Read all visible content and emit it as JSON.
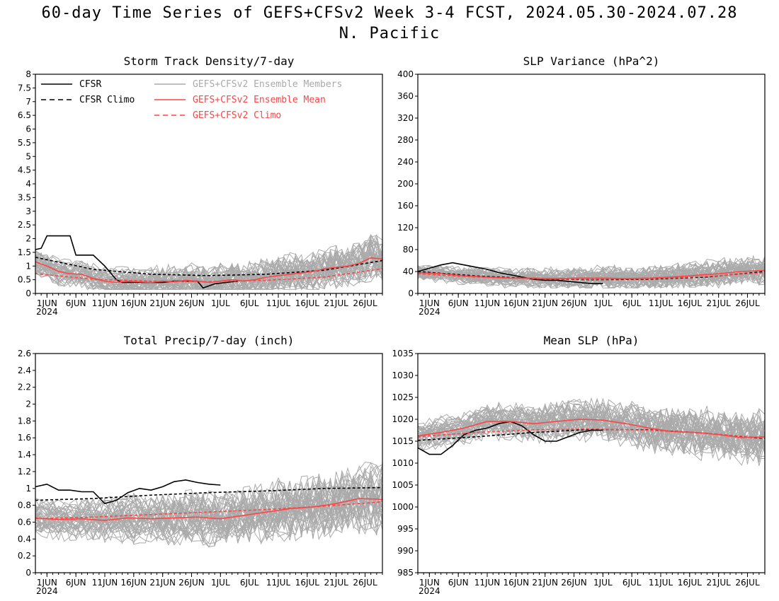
{
  "figure": {
    "title": "60-day Time Series of GEFS+CFSv2 Week 3-4 FCST, 2024.05.30-2024.07.28",
    "subtitle": "N. Pacific"
  },
  "colors": {
    "cfsr": "#000000",
    "members": "#aaaaaa",
    "ens_mean": "#ff4444"
  },
  "legend": {
    "items": [
      {
        "label": "CFSR",
        "style": "solid",
        "color": "#000000"
      },
      {
        "label": "CFSR Climo",
        "style": "dashed",
        "color": "#000000"
      },
      {
        "label": "GEFS+CFSv2 Ensemble Members",
        "style": "solid",
        "color": "#aaaaaa"
      },
      {
        "label": "GEFS+CFSv2 Ensemble Mean",
        "style": "solid",
        "color": "#ff4444"
      },
      {
        "label": "GEFS+CFSv2 Climo",
        "style": "dashed",
        "color": "#ff4444"
      }
    ]
  },
  "x_axis": {
    "labels": [
      "1JUN",
      "6JUN",
      "11JUN",
      "16JUN",
      "21JUN",
      "26JUN",
      "1JUL",
      "6JUL",
      "11JUL",
      "16JUL",
      "21JUL",
      "26JUL"
    ],
    "label_days": [
      2,
      7,
      12,
      17,
      22,
      27,
      32,
      37,
      42,
      47,
      52,
      57
    ],
    "year_label": "2024",
    "range_days": [
      0,
      60
    ]
  },
  "chart_data": [
    {
      "type": "line",
      "title": "Storm Track Density/7-day",
      "ylim": [
        0,
        8
      ],
      "yticks": [
        "0",
        "0.5",
        "1",
        "1.5",
        "2",
        "2.5",
        "3",
        "3.5",
        "4",
        "4.5",
        "5",
        "5.5",
        "6",
        "6.5",
        "7",
        "7.5",
        "8"
      ],
      "series": [
        {
          "name": "CFSR",
          "x": [
            0,
            1,
            2,
            3,
            6,
            7,
            8,
            10,
            12,
            14,
            15,
            16,
            18,
            20,
            22,
            24,
            26,
            28,
            29,
            31,
            33,
            35
          ],
          "values": [
            1.6,
            1.65,
            2.1,
            2.1,
            2.1,
            1.4,
            1.4,
            1.4,
            1.0,
            0.5,
            0.4,
            0.4,
            0.4,
            0.4,
            0.4,
            0.45,
            0.45,
            0.45,
            0.2,
            0.35,
            0.4,
            0.45
          ]
        },
        {
          "name": "CFSR Climo",
          "x": [
            0,
            10,
            20,
            30,
            40,
            50,
            60
          ],
          "values": [
            1.32,
            0.88,
            0.7,
            0.65,
            0.7,
            0.85,
            1.2
          ]
        },
        {
          "name": "GEFS+CFSv2 Ensemble Mean",
          "x": [
            0,
            2,
            4,
            6,
            8,
            10,
            12,
            14,
            16,
            18,
            20,
            22,
            24,
            26,
            28,
            30,
            32,
            34,
            36,
            38,
            40,
            42,
            44,
            46,
            48,
            50,
            52,
            54,
            56,
            58,
            60
          ],
          "values": [
            1.15,
            1.0,
            0.8,
            0.72,
            0.7,
            0.55,
            0.45,
            0.4,
            0.45,
            0.42,
            0.4,
            0.45,
            0.42,
            0.48,
            0.45,
            0.4,
            0.45,
            0.5,
            0.45,
            0.5,
            0.6,
            0.65,
            0.7,
            0.75,
            0.8,
            0.9,
            0.95,
            1.0,
            1.1,
            1.3,
            1.25
          ]
        },
        {
          "name": "GEFS+CFSv2 Climo",
          "x": [
            0,
            10,
            20,
            30,
            40,
            50,
            60
          ],
          "values": [
            0.72,
            0.52,
            0.45,
            0.43,
            0.48,
            0.6,
            0.9
          ]
        }
      ],
      "members": {
        "count": 40,
        "spread_low": 0.15,
        "spread_high": 2.6
      }
    },
    {
      "type": "line",
      "title": "SLP Variance (hPa^2)",
      "ylim": [
        0,
        400
      ],
      "yticks": [
        "0",
        "40",
        "80",
        "120",
        "160",
        "200",
        "240",
        "280",
        "320",
        "360",
        "400"
      ],
      "series": [
        {
          "name": "CFSR",
          "x": [
            0,
            2,
            4,
            6,
            8,
            10,
            12,
            14,
            16,
            18,
            20,
            22,
            24,
            26,
            28,
            30,
            32
          ],
          "values": [
            40,
            46,
            52,
            56,
            52,
            48,
            44,
            38,
            34,
            30,
            26,
            24,
            24,
            22,
            20,
            18,
            18
          ]
        },
        {
          "name": "CFSR Climo",
          "x": [
            0,
            10,
            20,
            30,
            40,
            50,
            60
          ],
          "values": [
            40,
            32,
            27,
            25,
            26,
            30,
            40
          ]
        },
        {
          "name": "GEFS+CFSv2 Ensemble Mean",
          "x": [
            0,
            4,
            8,
            12,
            16,
            20,
            24,
            28,
            32,
            36,
            40,
            44,
            48,
            52,
            56,
            60
          ],
          "values": [
            38,
            36,
            32,
            30,
            28,
            28,
            27,
            28,
            28,
            27,
            28,
            30,
            33,
            36,
            40,
            42
          ]
        },
        {
          "name": "GEFS+CFSv2 Climo",
          "x": [
            0,
            10,
            20,
            30,
            40,
            50,
            60
          ],
          "values": [
            36,
            30,
            27,
            26,
            27,
            31,
            38
          ]
        }
      ],
      "members": {
        "count": 40,
        "spread_low": 10,
        "spread_high": 90
      }
    },
    {
      "type": "line",
      "title": "Total Precip/7-day (inch)",
      "ylim": [
        0,
        2.6
      ],
      "yticks": [
        "0",
        "0.2",
        "0.4",
        "0.6",
        "0.8",
        "1",
        "1.2",
        "1.4",
        "1.6",
        "1.8",
        "2",
        "2.2",
        "2.4",
        "2.6"
      ],
      "series": [
        {
          "name": "CFSR",
          "x": [
            0,
            2,
            4,
            6,
            8,
            10,
            12,
            14,
            16,
            18,
            20,
            22,
            24,
            26,
            28,
            30,
            32
          ],
          "values": [
            1.02,
            1.05,
            0.98,
            0.98,
            0.96,
            0.96,
            0.82,
            0.86,
            0.95,
            1.0,
            0.98,
            1.02,
            1.08,
            1.1,
            1.07,
            1.05,
            1.04
          ]
        },
        {
          "name": "CFSR Climo",
          "x": [
            0,
            10,
            20,
            30,
            40,
            50,
            60
          ],
          "values": [
            0.86,
            0.88,
            0.92,
            0.95,
            0.97,
            1.0,
            1.01
          ]
        },
        {
          "name": "GEFS+CFSv2 Ensemble Mean",
          "x": [
            0,
            4,
            8,
            12,
            16,
            20,
            24,
            28,
            32,
            36,
            40,
            44,
            48,
            52,
            56,
            60
          ],
          "values": [
            0.65,
            0.63,
            0.64,
            0.62,
            0.65,
            0.64,
            0.65,
            0.66,
            0.64,
            0.68,
            0.72,
            0.76,
            0.78,
            0.82,
            0.88,
            0.87
          ]
        },
        {
          "name": "GEFS+CFSv2 Climo",
          "x": [
            0,
            10,
            20,
            30,
            40,
            50,
            60
          ],
          "values": [
            0.64,
            0.66,
            0.69,
            0.72,
            0.75,
            0.79,
            0.84
          ]
        }
      ],
      "members": {
        "count": 40,
        "spread_low": 0.3,
        "spread_high": 1.5
      }
    },
    {
      "type": "line",
      "title": "Mean SLP (hPa)",
      "ylim": [
        985,
        1035
      ],
      "yticks": [
        "985",
        "990",
        "995",
        "1000",
        "1005",
        "1010",
        "1015",
        "1020",
        "1025",
        "1030",
        "1035"
      ],
      "series": [
        {
          "name": "CFSR",
          "x": [
            0,
            2,
            4,
            6,
            8,
            10,
            12,
            14,
            16,
            18,
            20,
            22,
            24,
            26,
            28,
            30,
            32
          ],
          "values": [
            1013.5,
            1012.0,
            1012.0,
            1014.0,
            1016.5,
            1017.5,
            1018.0,
            1019.0,
            1019.5,
            1018.5,
            1016.5,
            1015.0,
            1015.0,
            1016.0,
            1017.0,
            1017.5,
            1017.5
          ]
        },
        {
          "name": "CFSR Climo",
          "x": [
            0,
            10,
            20,
            30,
            40,
            50,
            60
          ],
          "values": [
            1015.2,
            1016.0,
            1017.0,
            1017.7,
            1017.6,
            1016.8,
            1015.6
          ]
        },
        {
          "name": "GEFS+CFSv2 Ensemble Mean",
          "x": [
            0,
            4,
            8,
            12,
            16,
            20,
            24,
            28,
            32,
            36,
            40,
            44,
            48,
            52,
            56,
            60
          ],
          "values": [
            1016.2,
            1017.0,
            1018.0,
            1019.5,
            1019.5,
            1019.0,
            1019.5,
            1020.0,
            1019.8,
            1019.0,
            1018.0,
            1017.2,
            1017.0,
            1016.5,
            1015.8,
            1016.0
          ]
        },
        {
          "name": "GEFS+CFSv2 Climo",
          "x": [
            0,
            10,
            20,
            30,
            40,
            50,
            60
          ],
          "values": [
            1016.0,
            1017.0,
            1017.6,
            1017.8,
            1017.5,
            1016.8,
            1015.7
          ]
        }
      ],
      "members": {
        "count": 40,
        "spread_low": 1009,
        "spread_high": 1027
      }
    }
  ]
}
